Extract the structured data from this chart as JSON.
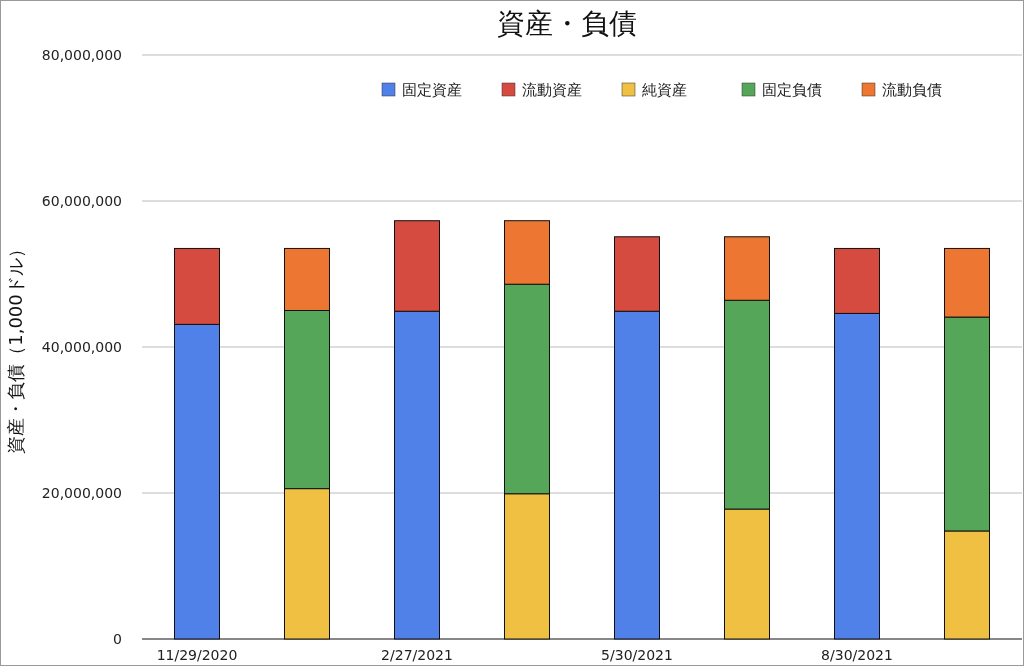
{
  "chart_data": {
    "type": "bar",
    "title": "資産・負債",
    "ylabel": "資産・負債（1,000ドル）",
    "categories": [
      "11/29/2020",
      null,
      "2/27/2021",
      null,
      "5/30/2021",
      null,
      "8/30/2021",
      null
    ],
    "stacked": true,
    "series": [
      {
        "name": "固定資産",
        "color": "#4f81e8",
        "values": [
          43100000,
          null,
          44900000,
          null,
          44900000,
          null,
          44600000,
          null
        ]
      },
      {
        "name": "流動資産",
        "color": "#d64b3f",
        "values": [
          10400000,
          null,
          12400000,
          null,
          10200000,
          null,
          8900000,
          null
        ]
      },
      {
        "name": "純資産",
        "color": "#f0c043",
        "values": [
          null,
          20600000,
          null,
          19900000,
          null,
          17800000,
          null,
          14800000
        ]
      },
      {
        "name": "固定負債",
        "color": "#56a65a",
        "values": [
          null,
          24400000,
          null,
          28700000,
          null,
          28600000,
          null,
          29300000
        ]
      },
      {
        "name": "流動負債",
        "color": "#ed7632",
        "values": [
          null,
          8500000,
          null,
          8700000,
          null,
          8700000,
          null,
          9400000
        ]
      }
    ],
    "ylim": [
      0,
      80000000
    ],
    "yticks": [
      0,
      {
        "value": 20000000,
        "label": "20,000,000"
      },
      {
        "value": 40000000,
        "label": "40,000,000"
      },
      {
        "value": 60000000,
        "label": "60,000,000"
      },
      {
        "value": 80000000,
        "label": "80,000,000"
      }
    ],
    "grid": "y",
    "legend": "top right"
  }
}
